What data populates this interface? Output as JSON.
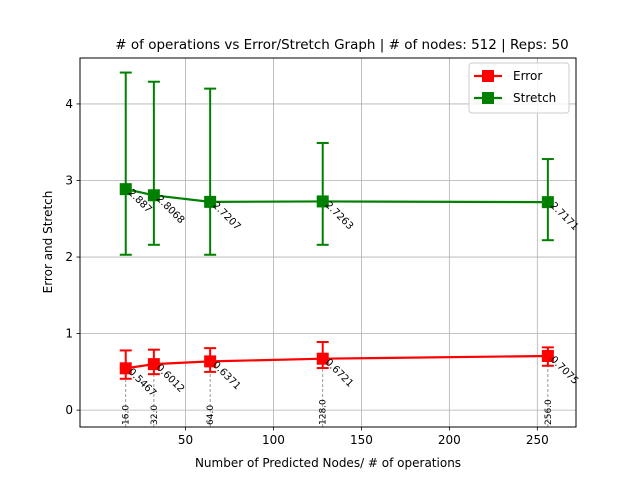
{
  "chart_data": {
    "type": "line",
    "title": "# of operations vs Error/Stretch Graph | # of nodes: 512 | Reps: 50",
    "xlabel": "Number of Predicted Nodes/ # of operations",
    "ylabel": "Error and Stretch",
    "xlim": [
      -10,
      272
    ],
    "ylim": [
      -0.22,
      4.6
    ],
    "xticks": [
      50,
      100,
      150,
      200,
      250
    ],
    "yticks": [
      0,
      1,
      2,
      3,
      4
    ],
    "grid": true,
    "legend_position": "top-right",
    "x": [
      16,
      32,
      64,
      128,
      256
    ],
    "x_annotations": [
      "16.0",
      "32.0",
      "64.0",
      "128.0",
      "256.0"
    ],
    "series": [
      {
        "name": "Error",
        "color": "#ff0000",
        "marker": "square",
        "values": [
          0.5467,
          0.6012,
          0.6371,
          0.6721,
          0.7075
        ],
        "labels": [
          "0.5467",
          "0.6012",
          "0.6371",
          "0.6721",
          "0.7075"
        ],
        "err_low": [
          0.41,
          0.47,
          0.5,
          0.55,
          0.58
        ],
        "err_high": [
          0.78,
          0.79,
          0.81,
          0.89,
          0.82
        ]
      },
      {
        "name": "Stretch",
        "color": "#008000",
        "marker": "square",
        "values": [
          2.887,
          2.8068,
          2.7207,
          2.7263,
          2.7171
        ],
        "labels": [
          "2.887",
          "2.8068",
          "2.7207",
          "2.7263",
          "2.7171"
        ],
        "err_low": [
          2.03,
          2.16,
          2.03,
          2.16,
          2.22
        ],
        "err_high": [
          4.41,
          4.29,
          4.2,
          3.49,
          3.28
        ]
      }
    ]
  }
}
